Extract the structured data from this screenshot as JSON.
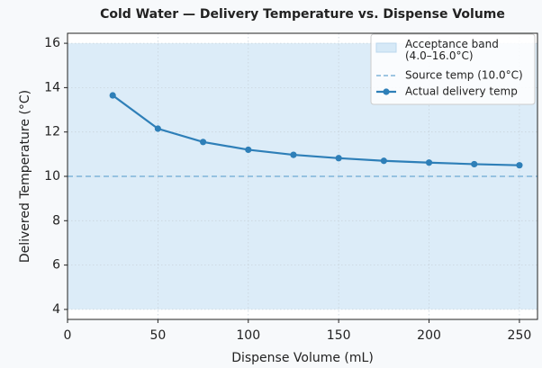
{
  "chart_data": {
    "type": "line",
    "title": "Cold Water — Delivery Temperature vs. Dispense Volume",
    "x_label": "Dispense Volume (mL)",
    "y_label": "Delivered Temperature (°C)",
    "x": [
      25,
      50,
      75,
      100,
      125,
      150,
      175,
      200,
      225,
      250
    ],
    "series": [
      {
        "name": "Actual delivery temp",
        "color": "#2e7fb8",
        "values": [
          13.65,
          12.15,
          11.55,
          11.2,
          10.97,
          10.82,
          10.7,
          10.62,
          10.55,
          10.5
        ]
      }
    ],
    "band": {
      "name": "Acceptance band\n(4.0–16.0°C)",
      "low": 4,
      "high": 16,
      "color": "#d6e9f7"
    },
    "reference_line": {
      "name": "Source temp (10.0°C)",
      "value": 10,
      "color": "#7fb3d9"
    },
    "xlim": [
      0,
      260
    ],
    "xticks": [
      0,
      50,
      100,
      150,
      200,
      250
    ],
    "ylim": [
      3.55,
      16.45
    ],
    "yticks": [
      4,
      6,
      8,
      10,
      12,
      14,
      16
    ],
    "grid": true,
    "legend": "upper right"
  }
}
